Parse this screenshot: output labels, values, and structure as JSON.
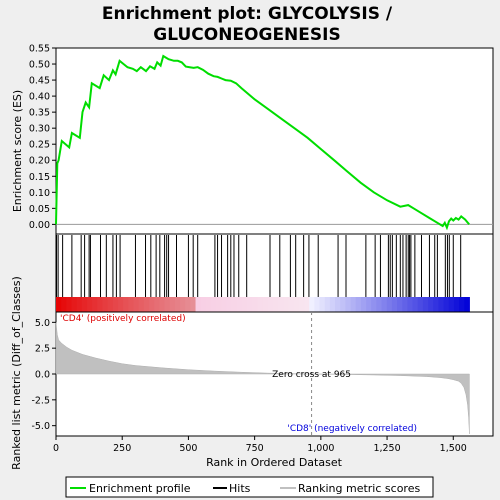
{
  "chart_data": {
    "type": "line",
    "title": "Enrichment plot: GLYCOLYSIS / GLUCONEOGENESIS",
    "title_lines": [
      "Enrichment plot: GLYCOLYSIS /",
      "GLUCONEOGENESIS"
    ],
    "xlabel": "Rank in Ordered Dataset",
    "es_ylabel": "Enrichment score (ES)",
    "metric_ylabel": "Ranked list metric (Diff_of_Classes)",
    "xlim": [
      0,
      1650
    ],
    "x_ticks": [
      0,
      250,
      500,
      750,
      1000,
      1250,
      1500
    ],
    "x_tick_labels": [
      "0",
      "250",
      "500",
      "750",
      "1,000",
      "1,250",
      "1,500"
    ],
    "es_ylim": [
      -0.03,
      0.55
    ],
    "es_ticks": [
      0.0,
      0.05,
      0.1,
      0.15,
      0.2,
      0.25,
      0.3,
      0.35,
      0.4,
      0.45,
      0.5,
      0.55
    ],
    "es_tick_labels": [
      "0.00",
      "0.05",
      "0.10",
      "0.15",
      "0.20",
      "0.25",
      "0.30",
      "0.35",
      "0.40",
      "0.45",
      "0.50",
      "0.55"
    ],
    "metric_ylim": [
      -6.0,
      6.0
    ],
    "metric_ticks": [
      5.0,
      2.5,
      0.0,
      -2.5,
      -5.0
    ],
    "metric_tick_labels": [
      "5.0",
      "2.5",
      "0.0",
      "-2.5",
      "-5.0"
    ],
    "grid": false,
    "enrichment_profile": {
      "name": "Enrichment profile",
      "color": "#00dd00",
      "x": [
        0,
        5,
        10,
        22,
        50,
        60,
        90,
        100,
        112,
        125,
        135,
        165,
        180,
        200,
        215,
        225,
        240,
        255,
        270,
        290,
        305,
        320,
        340,
        355,
        372,
        382,
        395,
        405,
        415,
        425,
        445,
        460,
        475,
        490,
        505,
        520,
        535,
        555,
        575,
        595,
        610,
        625,
        640,
        660,
        680,
        700,
        750,
        800,
        850,
        900,
        950,
        1000,
        1050,
        1100,
        1150,
        1200,
        1250,
        1300,
        1330,
        1350,
        1380,
        1410,
        1440,
        1460,
        1468,
        1476,
        1484,
        1492,
        1500,
        1510,
        1520,
        1530,
        1545,
        1560
      ],
      "y": [
        0.0,
        0.19,
        0.2,
        0.26,
        0.24,
        0.285,
        0.27,
        0.35,
        0.38,
        0.365,
        0.44,
        0.425,
        0.465,
        0.45,
        0.48,
        0.468,
        0.51,
        0.5,
        0.49,
        0.485,
        0.478,
        0.49,
        0.478,
        0.493,
        0.485,
        0.505,
        0.495,
        0.525,
        0.52,
        0.515,
        0.51,
        0.51,
        0.505,
        0.492,
        0.49,
        0.488,
        0.49,
        0.482,
        0.47,
        0.462,
        0.46,
        0.455,
        0.45,
        0.448,
        0.44,
        0.425,
        0.39,
        0.36,
        0.33,
        0.3,
        0.27,
        0.235,
        0.2,
        0.165,
        0.13,
        0.1,
        0.075,
        0.055,
        0.06,
        0.05,
        0.035,
        0.02,
        0.005,
        -0.005,
        0.005,
        -0.01,
        0.01,
        0.018,
        0.012,
        0.02,
        0.015,
        0.025,
        0.015,
        0.0
      ]
    },
    "hits": {
      "name": "Hits",
      "color": "#000000",
      "ranks": [
        2,
        8,
        25,
        60,
        95,
        108,
        125,
        130,
        168,
        190,
        215,
        228,
        242,
        300,
        338,
        358,
        378,
        392,
        410,
        418,
        425,
        455,
        500,
        518,
        535,
        600,
        610,
        625,
        648,
        660,
        672,
        690,
        720,
        808,
        845,
        885,
        905,
        935,
        955,
        990,
        1065,
        1095,
        1170,
        1205,
        1225,
        1255,
        1262,
        1270,
        1285,
        1300,
        1310,
        1322,
        1330,
        1335,
        1340,
        1355,
        1380,
        1410,
        1430,
        1440,
        1470,
        1478,
        1485,
        1500,
        1528
      ]
    },
    "ranked_metric": {
      "name": "Ranking metric scores",
      "color": "#c0c0c0",
      "x": [
        0,
        5,
        10,
        20,
        40,
        60,
        80,
        100,
        150,
        200,
        250,
        300,
        400,
        500,
        600,
        700,
        800,
        900,
        965,
        1100,
        1200,
        1300,
        1350,
        1400,
        1450,
        1480,
        1500,
        1520,
        1530,
        1540,
        1548,
        1554,
        1558,
        1561
      ],
      "y": [
        5.0,
        3.8,
        3.3,
        3.0,
        2.6,
        2.3,
        2.1,
        1.9,
        1.55,
        1.25,
        1.0,
        0.82,
        0.6,
        0.42,
        0.28,
        0.17,
        0.09,
        0.03,
        0.0,
        -0.05,
        -0.1,
        -0.15,
        -0.2,
        -0.25,
        -0.35,
        -0.45,
        -0.55,
        -0.7,
        -0.9,
        -1.3,
        -2.0,
        -3.0,
        -4.2,
        -5.8
      ]
    },
    "zero_cross": {
      "rank": 965,
      "label": "Zero cross at 965"
    },
    "positive_label": "'CD4' (positively correlated)",
    "negative_label": "'CD8' (negatively correlated)",
    "colorbar_max_rank": 1561,
    "legend": {
      "placement": "bottom",
      "items": [
        {
          "label": "Enrichment profile",
          "color": "#00dd00",
          "style": "line"
        },
        {
          "label": "Hits",
          "color": "#000000",
          "style": "line"
        },
        {
          "label": "Ranking metric scores",
          "color": "#c0c0c0",
          "style": "line"
        }
      ]
    },
    "colors": {
      "positive_text": "#dd0000",
      "negative_text": "#0000dd",
      "background": "#efefef"
    }
  }
}
